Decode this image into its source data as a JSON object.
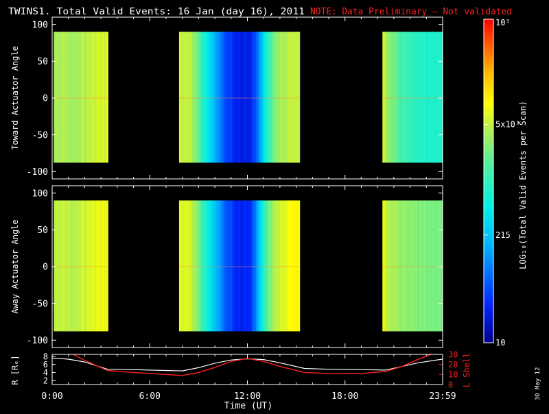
{
  "title": "TWINS1. Total Valid Events: 16 Jan (day  16), 2011",
  "note": "NOTE: Data Preliminary – Not validated",
  "footer_date": "30 May 12",
  "colors": {
    "background": "#000000",
    "foreground": "#ffffff",
    "note": "#ff2020",
    "lshell_line": "#ff2020",
    "r_line": "#ffffff"
  },
  "colorbar": {
    "label": "LOG₁₀(Total Valid Events per Scan)",
    "ticks": [
      "10",
      "215",
      "5x10³",
      "10⁵"
    ],
    "tick_values": [
      10,
      215,
      5000,
      100000
    ],
    "range": [
      10,
      100000
    ],
    "scale": "log",
    "colormap": "rainbow (blue → cyan → green → yellow → orange → red)"
  },
  "chart_data": [
    {
      "type": "heatmap",
      "name": "toward",
      "ylabel": "Toward Actuator Angle",
      "ylim": [
        -110,
        110
      ],
      "yticks": [
        -100,
        -50,
        0,
        50,
        100
      ],
      "angle_range": [
        -88,
        90
      ],
      "xlim": [
        0,
        24
      ],
      "data_blocks_hours": [
        [
          0.1,
          3.4
        ],
        [
          7.8,
          15.2
        ],
        [
          20.3,
          23.98
        ]
      ],
      "column_log_counts": [
        {
          "t": 0.1,
          "v": 3.6
        },
        {
          "t": 1.0,
          "v": 3.6
        },
        {
          "t": 2.0,
          "v": 3.65
        },
        {
          "t": 2.8,
          "v": 3.75
        },
        {
          "t": 3.4,
          "v": 3.85
        },
        {
          "t": 7.8,
          "v": 3.75
        },
        {
          "t": 8.5,
          "v": 3.6
        },
        {
          "t": 9.0,
          "v": 3.2
        },
        {
          "t": 9.8,
          "v": 2.4
        },
        {
          "t": 10.5,
          "v": 1.7
        },
        {
          "t": 11.5,
          "v": 1.35
        },
        {
          "t": 12.2,
          "v": 1.4
        },
        {
          "t": 12.8,
          "v": 2.2
        },
        {
          "t": 13.3,
          "v": 3.1
        },
        {
          "t": 14.0,
          "v": 3.6
        },
        {
          "t": 14.7,
          "v": 3.75
        },
        {
          "t": 15.2,
          "v": 3.7
        },
        {
          "t": 20.3,
          "v": 3.8
        },
        {
          "t": 20.8,
          "v": 3.4
        },
        {
          "t": 21.5,
          "v": 3.1
        },
        {
          "t": 22.5,
          "v": 2.9
        },
        {
          "t": 23.98,
          "v": 2.9
        }
      ]
    },
    {
      "type": "heatmap",
      "name": "away",
      "ylabel": "Away Actuator Angle",
      "ylim": [
        -110,
        110
      ],
      "yticks": [
        -100,
        -50,
        0,
        50,
        100
      ],
      "angle_range": [
        -88,
        90
      ],
      "xlim": [
        0,
        24
      ],
      "data_blocks_hours": [
        [
          0.1,
          3.4
        ],
        [
          7.8,
          15.2
        ],
        [
          20.3,
          23.98
        ]
      ],
      "column_log_counts": [
        {
          "t": 0.1,
          "v": 3.7
        },
        {
          "t": 1.0,
          "v": 3.7
        },
        {
          "t": 2.0,
          "v": 3.75
        },
        {
          "t": 2.8,
          "v": 3.85
        },
        {
          "t": 3.4,
          "v": 3.95
        },
        {
          "t": 7.8,
          "v": 3.85
        },
        {
          "t": 8.5,
          "v": 3.7
        },
        {
          "t": 9.0,
          "v": 3.3
        },
        {
          "t": 9.8,
          "v": 2.5
        },
        {
          "t": 10.5,
          "v": 1.8
        },
        {
          "t": 11.5,
          "v": 1.4
        },
        {
          "t": 12.2,
          "v": 1.5
        },
        {
          "t": 12.8,
          "v": 2.6
        },
        {
          "t": 13.3,
          "v": 3.4
        },
        {
          "t": 14.0,
          "v": 3.8
        },
        {
          "t": 14.7,
          "v": 4.0
        },
        {
          "t": 15.2,
          "v": 4.0
        },
        {
          "t": 20.3,
          "v": 3.9
        },
        {
          "t": 20.8,
          "v": 3.6
        },
        {
          "t": 21.5,
          "v": 3.5
        },
        {
          "t": 22.5,
          "v": 3.4
        },
        {
          "t": 23.98,
          "v": 3.4
        }
      ]
    },
    {
      "type": "line",
      "name": "orbit",
      "xlabel": "Time (UT)",
      "ylabel_left": "R [Rₑ]",
      "ylabel_right": "L Shell",
      "xlim": [
        0,
        24
      ],
      "xticks": [
        0,
        6,
        12,
        18,
        24
      ],
      "xtick_labels": [
        "0:00",
        "6:00",
        "12:00",
        "18:00",
        "23:59"
      ],
      "ylim_left": [
        1,
        8.5
      ],
      "yticks_left": [
        2,
        4,
        6,
        8
      ],
      "ylim_right": [
        0,
        30
      ],
      "yticks_right": [
        0,
        10,
        20,
        30
      ],
      "series": [
        {
          "axis": "left",
          "x": [
            0,
            1,
            2,
            3.4,
            5,
            7,
            8,
            9,
            10,
            11,
            12,
            13,
            14,
            15.5,
            17,
            19,
            20.5,
            21.5,
            22.5,
            23.98
          ],
          "y": [
            7.6,
            7.3,
            6.6,
            4.8,
            4.7,
            4.5,
            4.4,
            5.2,
            6.3,
            7.1,
            7.4,
            7.2,
            6.4,
            5.0,
            4.8,
            4.7,
            4.6,
            5.5,
            6.4,
            7.3
          ]
        },
        {
          "axis": "right",
          "x": [
            1.3,
            2,
            3.4,
            5,
            7,
            8,
            9,
            10,
            11,
            12,
            13,
            14,
            15.5,
            17,
            19,
            20.5,
            21.5,
            22.5,
            23.3
          ],
          "y": [
            30,
            24,
            14,
            12,
            10,
            9,
            12,
            17,
            23,
            26,
            23,
            18,
            12,
            11,
            11,
            13,
            18,
            25,
            30
          ]
        }
      ]
    }
  ]
}
